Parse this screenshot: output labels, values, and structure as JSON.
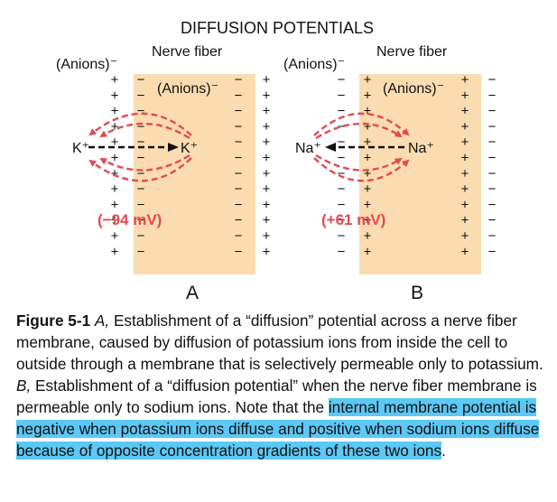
{
  "figure": {
    "title": "DIFFUSION POTENTIALS",
    "panel_a": {
      "outside_label": "(Anions)⁻",
      "fiber_label": "Nerve fiber",
      "inside_label": "(Anions)⁻",
      "ion_outside": "K⁺",
      "ion_inside": "K⁺",
      "potential": "(−94 mV)",
      "panel_letter": "A",
      "outer_sign": "+",
      "inner_sign": "−",
      "fiber_sign": "−",
      "beyond_sign": "+"
    },
    "panel_b": {
      "outside_label": "(Anions)⁻",
      "fiber_label": "Nerve fiber",
      "inside_label": "(Anions)⁻",
      "ion_outside": "Na⁺",
      "ion_inside": "Na⁺",
      "potential": "(+61 mV)",
      "panel_letter": "B",
      "outer_sign": "−",
      "inner_sign": "+",
      "fiber_sign": "+",
      "beyond_sign": "−"
    },
    "colors": {
      "fiber_fill": "#fbdcb0",
      "arrow_red": "#e24a52",
      "highlight": "#5cc8f5"
    }
  },
  "caption": {
    "label": "Figure 5-1",
    "italic_a": "A,",
    "text_a": " Establishment of a “diffusion” potential across a nerve fiber membrane, caused by diffusion of potassium ions from inside the cell to outside through a membrane that is selectively permeable only to potassium. ",
    "italic_b": "B,",
    "text_b": " Establishment of a “diffusion potential” when the nerve fiber membrane is permeable only to sodium ions. Note that the ",
    "highlighted": "internal membrane potential is negative when potassium ions diffuse and positive when sodium ions diffuse because of opposite concentration gradients of these two ions",
    "end": "."
  }
}
